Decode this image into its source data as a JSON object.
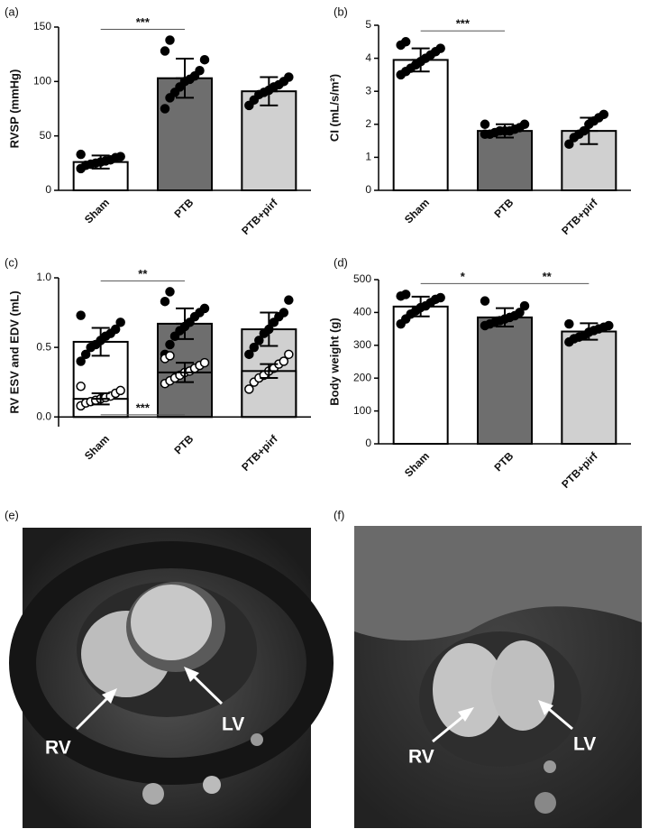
{
  "chart_data": [
    {
      "type": "bar",
      "panel_label": "(a)",
      "ylabel": "RVSP (mmHg)",
      "categories": [
        "Sham",
        "PTB",
        "PTB+pirf"
      ],
      "colors": [
        "#ffffff",
        "#6e6e6e",
        "#d0d0d0"
      ],
      "series": [
        {
          "marker": "filled",
          "values": [
            26,
            103,
            91
          ],
          "errors": [
            6,
            18,
            13
          ],
          "points": [
            [
              20,
              23,
              24,
              25,
              26,
              27,
              28,
              30,
              31,
              33
            ],
            [
              75,
              85,
              90,
              95,
              100,
              102,
              105,
              110,
              120,
              128,
              138
            ],
            [
              78,
              83,
              88,
              90,
              92,
              95,
              97,
              100,
              104
            ]
          ]
        }
      ],
      "ylim": [
        0,
        150
      ],
      "yticks": [
        0,
        50,
        100,
        150
      ],
      "brackets": [
        {
          "text": "***",
          "between": [
            "Sham",
            "PTB"
          ]
        }
      ]
    },
    {
      "type": "bar",
      "panel_label": "(b)",
      "ylabel": "CI (mL/s/m²)",
      "categories": [
        "Sham",
        "PTB",
        "PTB+pirf"
      ],
      "colors": [
        "#ffffff",
        "#6e6e6e",
        "#d0d0d0"
      ],
      "series": [
        {
          "marker": "filled",
          "values": [
            3.95,
            1.8,
            1.8
          ],
          "errors": [
            0.35,
            0.2,
            0.4
          ],
          "points": [
            [
              3.5,
              3.6,
              3.7,
              3.8,
              3.9,
              4.0,
              4.1,
              4.2,
              4.3,
              4.4,
              4.5
            ],
            [
              1.7,
              1.7,
              1.75,
              1.8,
              1.8,
              1.8,
              1.85,
              1.9,
              2.0,
              2.0
            ],
            [
              1.4,
              1.6,
              1.7,
              1.8,
              2.0,
              2.1,
              2.2,
              2.3
            ]
          ]
        }
      ],
      "ylim": [
        0,
        5
      ],
      "yticks": [
        0,
        1,
        2,
        3,
        4,
        5
      ],
      "brackets": [
        {
          "text": "***",
          "between": [
            "Sham",
            "PTB"
          ]
        }
      ]
    },
    {
      "type": "bar",
      "panel_label": "(c)",
      "ylabel": "RV ESV and EDV (mL)",
      "categories": [
        "Sham",
        "PTB",
        "PTB+pirf"
      ],
      "colors": [
        "#ffffff",
        "#6e6e6e",
        "#d0d0d0"
      ],
      "series": [
        {
          "marker": "filled",
          "values": [
            0.54,
            0.67,
            0.63
          ],
          "errors": [
            0.1,
            0.11,
            0.12
          ],
          "points": [
            [
              0.4,
              0.45,
              0.5,
              0.52,
              0.55,
              0.58,
              0.6,
              0.63,
              0.68,
              0.73
            ],
            [
              0.45,
              0.52,
              0.58,
              0.62,
              0.65,
              0.68,
              0.72,
              0.75,
              0.78,
              0.83,
              0.9
            ],
            [
              0.45,
              0.5,
              0.55,
              0.6,
              0.63,
              0.68,
              0.72,
              0.75,
              0.84
            ]
          ]
        },
        {
          "marker": "open",
          "values": [
            0.13,
            0.32,
            0.33
          ],
          "errors": [
            0.04,
            0.07,
            0.05
          ],
          "points": [
            [
              0.08,
              0.1,
              0.11,
              0.12,
              0.13,
              0.14,
              0.15,
              0.17,
              0.19,
              0.22
            ],
            [
              0.24,
              0.26,
              0.28,
              0.3,
              0.32,
              0.33,
              0.35,
              0.37,
              0.39,
              0.42,
              0.44
            ],
            [
              0.2,
              0.25,
              0.28,
              0.3,
              0.33,
              0.35,
              0.38,
              0.4,
              0.45
            ]
          ]
        }
      ],
      "ylim": [
        -0.07,
        1.0
      ],
      "yticks": [
        {
          "value": 0,
          "label": "0.0"
        },
        0.5,
        {
          "value": 1,
          "label": "1.0"
        }
      ],
      "brackets": [
        {
          "text": "**",
          "between": [
            "Sham",
            "PTB"
          ]
        },
        {
          "text": "***",
          "between": [
            "Sham",
            "PTB"
          ]
        }
      ]
    },
    {
      "type": "bar",
      "panel_label": "(d)",
      "ylabel": "Body weight (g)",
      "categories": [
        "Sham",
        "PTB",
        "PTB+pirf"
      ],
      "colors": [
        "#ffffff",
        "#6e6e6e",
        "#d0d0d0"
      ],
      "series": [
        {
          "marker": "filled",
          "values": [
            418,
            385,
            342
          ],
          "errors": [
            30,
            28,
            25
          ],
          "points": [
            [
              365,
              380,
              395,
              405,
              415,
              420,
              430,
              440,
              445,
              450,
              455
            ],
            [
              360,
              365,
              370,
              375,
              380,
              385,
              390,
              400,
              420,
              435
            ],
            [
              310,
              320,
              325,
              330,
              340,
              345,
              350,
              355,
              360,
              365
            ]
          ]
        }
      ],
      "ylim": [
        0,
        500
      ],
      "yticks": [
        0,
        100,
        200,
        300,
        400,
        500
      ],
      "brackets": [
        {
          "text": "*",
          "between": [
            "Sham",
            "PTB"
          ]
        },
        {
          "text": "**",
          "between": [
            "PTB",
            "PTB+pirf"
          ]
        }
      ]
    }
  ],
  "images": [
    {
      "panel_label": "(e)",
      "labels": [
        "RV",
        "LV"
      ]
    },
    {
      "panel_label": "(f)",
      "labels": [
        "RV",
        "LV"
      ]
    }
  ]
}
